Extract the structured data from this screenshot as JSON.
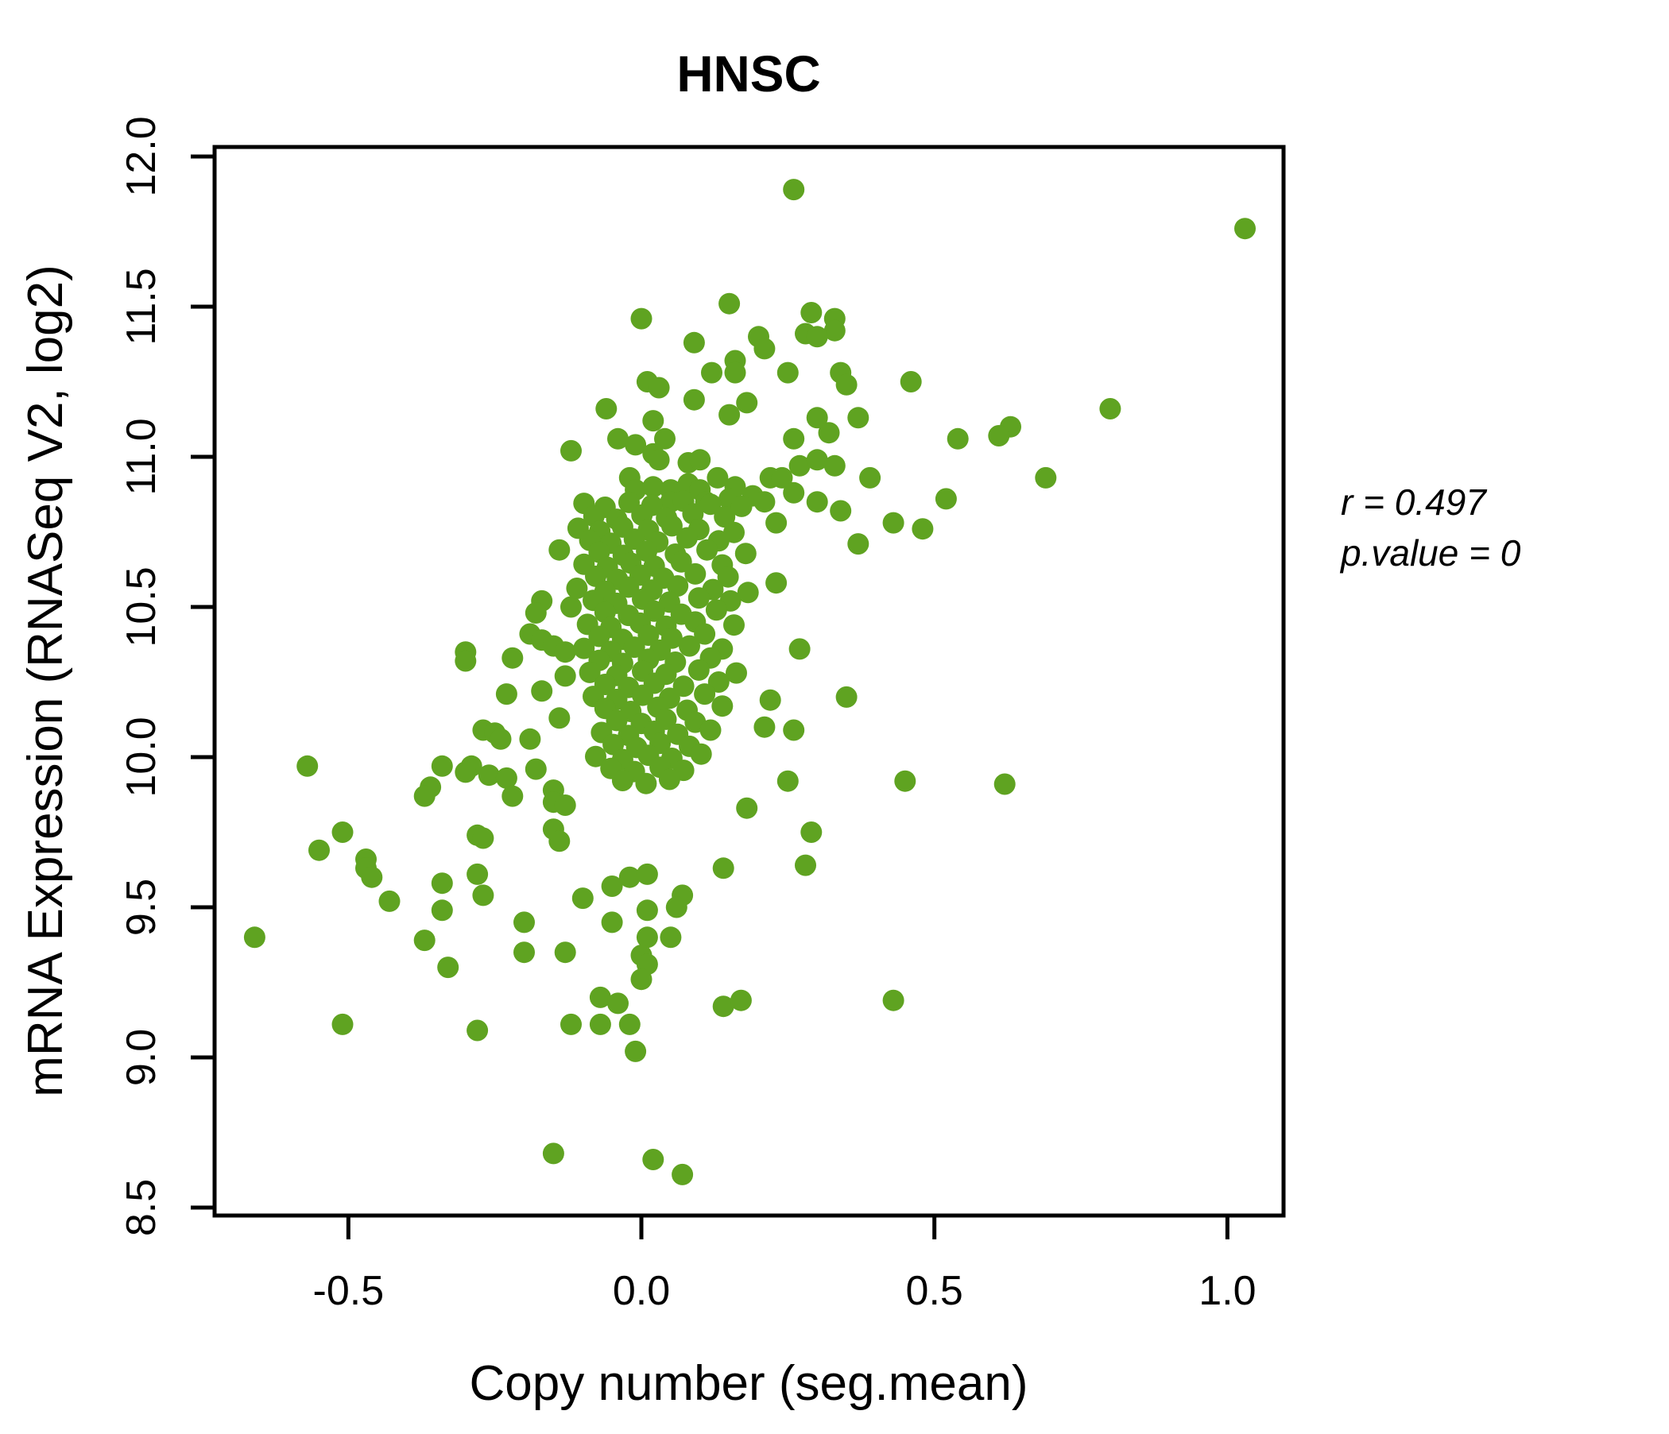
{
  "title": "HNSC",
  "annotation": {
    "line1": "r = 0.497",
    "line2": "p.value = 0"
  },
  "chart_data": {
    "type": "scatter",
    "title": "HNSC",
    "title_color": "#5FA321",
    "point_color": "#5FA321",
    "xlabel": "Copy number (seg.mean)",
    "ylabel": "mRNA Expression (RNASeq V2, log2)",
    "xlim": [
      -0.7283,
      1.0958
    ],
    "ylim": [
      8.4735,
      12.0317
    ],
    "x_ticks": [
      {
        "v": -0.5,
        "label": "-0.5"
      },
      {
        "v": 0.0,
        "label": "0.0"
      },
      {
        "v": 0.5,
        "label": "0.5"
      },
      {
        "v": 1.0,
        "label": "1.0"
      }
    ],
    "y_ticks": [
      {
        "v": 8.5,
        "label": "8.5"
      },
      {
        "v": 9.0,
        "label": "9.0"
      },
      {
        "v": 9.5,
        "label": "9.5"
      },
      {
        "v": 10.0,
        "label": "10.0"
      },
      {
        "v": 10.5,
        "label": "10.5"
      },
      {
        "v": 11.0,
        "label": "11.0"
      },
      {
        "v": 11.5,
        "label": "11.5"
      },
      {
        "v": 12.0,
        "label": "12.0"
      }
    ],
    "grid": false,
    "legend": "none",
    "correlation_r": 0.497,
    "p_value": 0,
    "points": [
      [
        0.26,
        11.89
      ],
      [
        1.03,
        11.76
      ],
      [
        0.15,
        11.51
      ],
      [
        0.29,
        11.48
      ],
      [
        0.0,
        11.46
      ],
      [
        0.33,
        11.46
      ],
      [
        0.33,
        11.42
      ],
      [
        0.28,
        11.41
      ],
      [
        0.3,
        11.4
      ],
      [
        0.2,
        11.4
      ],
      [
        0.09,
        11.38
      ],
      [
        0.21,
        11.36
      ],
      [
        0.16,
        11.32
      ],
      [
        0.16,
        11.28
      ],
      [
        0.12,
        11.28
      ],
      [
        0.25,
        11.28
      ],
      [
        0.34,
        11.28
      ],
      [
        0.35,
        11.24
      ],
      [
        0.01,
        11.25
      ],
      [
        0.03,
        11.23
      ],
      [
        0.46,
        11.25
      ],
      [
        0.09,
        11.19
      ],
      [
        0.18,
        11.18
      ],
      [
        -0.06,
        11.16
      ],
      [
        0.8,
        11.16
      ],
      [
        0.15,
        11.14
      ],
      [
        0.3,
        11.13
      ],
      [
        0.37,
        11.13
      ],
      [
        0.32,
        11.08
      ],
      [
        0.02,
        11.12
      ],
      [
        0.63,
        11.1
      ],
      [
        0.61,
        11.07
      ],
      [
        0.54,
        11.06
      ],
      [
        0.04,
        11.06
      ],
      [
        0.26,
        11.06
      ],
      [
        -0.04,
        11.06
      ],
      [
        -0.12,
        11.02
      ],
      [
        -0.01,
        11.04
      ],
      [
        0.02,
        11.01
      ],
      [
        0.03,
        10.99
      ],
      [
        0.08,
        10.98
      ],
      [
        0.1,
        10.99
      ],
      [
        0.13,
        10.93
      ],
      [
        0.16,
        10.9
      ],
      [
        0.22,
        10.93
      ],
      [
        0.24,
        10.93
      ],
      [
        0.27,
        10.97
      ],
      [
        0.3,
        10.99
      ],
      [
        0.33,
        10.97
      ],
      [
        0.39,
        10.93
      ],
      [
        0.69,
        10.93
      ],
      [
        -0.02,
        10.93
      ],
      [
        -0.01,
        10.89
      ],
      [
        0.02,
        10.9
      ],
      [
        0.05,
        10.89
      ],
      [
        0.08,
        10.91
      ],
      [
        0.1,
        10.89
      ],
      [
        0.05,
        10.85
      ],
      [
        0.11,
        10.85
      ],
      [
        0.15,
        10.86
      ],
      [
        0.19,
        10.87
      ],
      [
        0.21,
        10.85
      ],
      [
        0.26,
        10.88
      ],
      [
        0.3,
        10.85
      ],
      [
        0.52,
        10.86
      ],
      [
        0.48,
        10.76
      ],
      [
        0.43,
        10.78
      ],
      [
        0.37,
        10.71
      ],
      [
        0.34,
        10.82
      ],
      [
        0.23,
        10.78
      ],
      [
        0.23,
        10.58
      ],
      [
        0.27,
        10.36
      ],
      [
        0.35,
        10.2
      ],
      [
        0.22,
        10.19
      ],
      [
        0.21,
        10.1
      ],
      [
        0.26,
        10.09
      ],
      [
        0.25,
        9.92
      ],
      [
        0.45,
        9.92
      ],
      [
        0.62,
        9.91
      ],
      [
        0.29,
        9.75
      ],
      [
        0.18,
        9.83
      ],
      [
        -0.14,
        10.69
      ],
      [
        -0.17,
        10.52
      ],
      [
        -0.18,
        10.48
      ],
      [
        -0.12,
        10.5
      ],
      [
        -0.19,
        10.41
      ],
      [
        -0.17,
        10.39
      ],
      [
        -0.15,
        10.37
      ],
      [
        -0.13,
        10.35
      ],
      [
        -0.3,
        10.35
      ],
      [
        -0.3,
        10.32
      ],
      [
        -0.22,
        10.33
      ],
      [
        -0.23,
        10.21
      ],
      [
        -0.17,
        10.22
      ],
      [
        -0.13,
        10.27
      ],
      [
        -0.14,
        10.13
      ],
      [
        -0.27,
        10.09
      ],
      [
        -0.25,
        10.08
      ],
      [
        -0.24,
        10.06
      ],
      [
        -0.19,
        10.06
      ],
      [
        -0.57,
        9.97
      ],
      [
        -0.34,
        9.97
      ],
      [
        -0.29,
        9.97
      ],
      [
        -0.26,
        9.94
      ],
      [
        -0.23,
        9.93
      ],
      [
        -0.36,
        9.9
      ],
      [
        -0.37,
        9.87
      ],
      [
        -0.3,
        9.95
      ],
      [
        -0.22,
        9.87
      ],
      [
        -0.18,
        9.96
      ],
      [
        -0.15,
        9.89
      ],
      [
        -0.15,
        9.85
      ],
      [
        -0.13,
        9.84
      ],
      [
        -0.51,
        9.75
      ],
      [
        -0.28,
        9.74
      ],
      [
        -0.27,
        9.73
      ],
      [
        -0.15,
        9.76
      ],
      [
        -0.14,
        9.72
      ],
      [
        -0.55,
        9.69
      ],
      [
        -0.47,
        9.66
      ],
      [
        -0.47,
        9.63
      ],
      [
        -0.46,
        9.6
      ],
      [
        -0.43,
        9.52
      ],
      [
        -0.34,
        9.58
      ],
      [
        -0.28,
        9.61
      ],
      [
        -0.27,
        9.54
      ],
      [
        -0.34,
        9.49
      ],
      [
        -0.66,
        9.4
      ],
      [
        -0.37,
        9.39
      ],
      [
        -0.2,
        9.45
      ],
      [
        -0.2,
        9.35
      ],
      [
        -0.13,
        9.35
      ],
      [
        -0.33,
        9.3
      ],
      [
        -0.51,
        9.11
      ],
      [
        -0.28,
        9.09
      ],
      [
        -0.15,
        8.68
      ],
      [
        -0.12,
        9.11
      ],
      [
        -0.1,
        9.53
      ],
      [
        -0.05,
        9.57
      ],
      [
        -0.02,
        9.6
      ],
      [
        0.01,
        9.61
      ],
      [
        0.14,
        9.63
      ],
      [
        0.28,
        9.64
      ],
      [
        -0.05,
        9.45
      ],
      [
        0.01,
        9.49
      ],
      [
        0.07,
        9.54
      ],
      [
        0.06,
        9.5
      ],
      [
        0.01,
        9.4
      ],
      [
        0.05,
        9.4
      ],
      [
        0.0,
        9.34
      ],
      [
        0.01,
        9.31
      ],
      [
        0.0,
        9.26
      ],
      [
        -0.07,
        9.2
      ],
      [
        -0.04,
        9.18
      ],
      [
        -0.07,
        9.11
      ],
      [
        -0.02,
        9.11
      ],
      [
        -0.01,
        9.02
      ],
      [
        0.14,
        9.17
      ],
      [
        0.17,
        9.19
      ],
      [
        0.43,
        9.19
      ],
      [
        0.02,
        8.66
      ],
      [
        0.07,
        8.61
      ],
      [
        -0.098,
        10.845
      ],
      [
        -0.062,
        10.832
      ],
      [
        -0.021,
        10.848
      ],
      [
        0.018,
        10.838
      ],
      [
        0.072,
        10.852
      ],
      [
        0.118,
        10.842
      ],
      [
        0.171,
        10.835
      ],
      [
        -0.081,
        10.802
      ],
      [
        -0.042,
        10.792
      ],
      [
        0.001,
        10.806
      ],
      [
        0.043,
        10.796
      ],
      [
        0.088,
        10.81
      ],
      [
        0.142,
        10.8
      ],
      [
        -0.108,
        10.762
      ],
      [
        -0.071,
        10.752
      ],
      [
        -0.032,
        10.766
      ],
      [
        0.012,
        10.756
      ],
      [
        0.052,
        10.77
      ],
      [
        0.098,
        10.758
      ],
      [
        0.158,
        10.748
      ],
      [
        -0.088,
        10.722
      ],
      [
        -0.052,
        10.712
      ],
      [
        -0.012,
        10.726
      ],
      [
        0.028,
        10.716
      ],
      [
        0.078,
        10.73
      ],
      [
        0.132,
        10.72
      ],
      [
        -0.072,
        10.682
      ],
      [
        -0.031,
        10.672
      ],
      [
        0.009,
        10.686
      ],
      [
        0.058,
        10.676
      ],
      [
        0.112,
        10.69
      ],
      [
        0.178,
        10.678
      ],
      [
        -0.098,
        10.642
      ],
      [
        -0.058,
        10.632
      ],
      [
        -0.018,
        10.646
      ],
      [
        0.022,
        10.636
      ],
      [
        0.068,
        10.65
      ],
      [
        0.138,
        10.64
      ],
      [
        -0.078,
        10.602
      ],
      [
        -0.041,
        10.592
      ],
      [
        -0.002,
        10.606
      ],
      [
        0.038,
        10.596
      ],
      [
        0.092,
        10.61
      ],
      [
        0.148,
        10.6
      ],
      [
        -0.11,
        10.562
      ],
      [
        -0.062,
        10.552
      ],
      [
        -0.022,
        10.566
      ],
      [
        0.018,
        10.556
      ],
      [
        0.062,
        10.57
      ],
      [
        0.122,
        10.558
      ],
      [
        0.182,
        10.548
      ],
      [
        -0.082,
        10.522
      ],
      [
        -0.042,
        10.512
      ],
      [
        0.002,
        10.526
      ],
      [
        0.048,
        10.516
      ],
      [
        0.098,
        10.53
      ],
      [
        0.152,
        10.52
      ],
      [
        -0.062,
        10.482
      ],
      [
        -0.022,
        10.472
      ],
      [
        0.022,
        10.486
      ],
      [
        0.068,
        10.476
      ],
      [
        0.128,
        10.49
      ],
      [
        -0.092,
        10.442
      ],
      [
        -0.052,
        10.432
      ],
      [
        -0.002,
        10.446
      ],
      [
        0.042,
        10.436
      ],
      [
        0.092,
        10.45
      ],
      [
        0.158,
        10.44
      ],
      [
        -0.072,
        10.402
      ],
      [
        -0.032,
        10.392
      ],
      [
        0.012,
        10.406
      ],
      [
        0.052,
        10.396
      ],
      [
        0.108,
        10.41
      ],
      [
        -0.098,
        10.362
      ],
      [
        -0.052,
        10.352
      ],
      [
        -0.012,
        10.366
      ],
      [
        0.032,
        10.356
      ],
      [
        0.082,
        10.37
      ],
      [
        0.138,
        10.36
      ],
      [
        -0.072,
        10.322
      ],
      [
        -0.032,
        10.312
      ],
      [
        0.012,
        10.326
      ],
      [
        0.058,
        10.316
      ],
      [
        0.118,
        10.33
      ],
      [
        -0.088,
        10.282
      ],
      [
        -0.042,
        10.272
      ],
      [
        0.002,
        10.286
      ],
      [
        0.042,
        10.276
      ],
      [
        0.098,
        10.29
      ],
      [
        0.162,
        10.28
      ],
      [
        -0.062,
        10.242
      ],
      [
        -0.022,
        10.232
      ],
      [
        0.022,
        10.246
      ],
      [
        0.072,
        10.236
      ],
      [
        0.132,
        10.25
      ],
      [
        -0.082,
        10.202
      ],
      [
        -0.042,
        10.192
      ],
      [
        0.002,
        10.206
      ],
      [
        0.048,
        10.196
      ],
      [
        0.108,
        10.21
      ],
      [
        -0.062,
        10.162
      ],
      [
        -0.018,
        10.152
      ],
      [
        0.028,
        10.166
      ],
      [
        0.078,
        10.156
      ],
      [
        0.138,
        10.17
      ],
      [
        -0.042,
        10.122
      ],
      [
        0.0,
        10.112
      ],
      [
        0.042,
        10.126
      ],
      [
        0.092,
        10.116
      ],
      [
        -0.068,
        10.082
      ],
      [
        -0.022,
        10.072
      ],
      [
        0.022,
        10.086
      ],
      [
        0.062,
        10.076
      ],
      [
        0.118,
        10.09
      ],
      [
        -0.048,
        10.042
      ],
      [
        -0.008,
        10.032
      ],
      [
        0.032,
        10.046
      ],
      [
        0.082,
        10.036
      ],
      [
        -0.078,
        10.002
      ],
      [
        -0.032,
        9.992
      ],
      [
        0.012,
        10.006
      ],
      [
        0.052,
        9.996
      ],
      [
        0.102,
        10.01
      ],
      [
        -0.052,
        9.962
      ],
      [
        -0.012,
        9.952
      ],
      [
        0.032,
        9.966
      ],
      [
        0.072,
        9.956
      ],
      [
        -0.032,
        9.922
      ],
      [
        0.008,
        9.912
      ],
      [
        0.048,
        9.926
      ]
    ]
  }
}
